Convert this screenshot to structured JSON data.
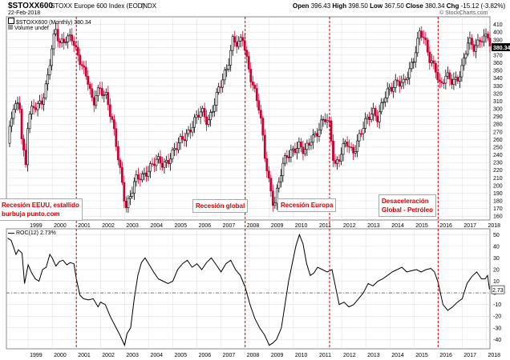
{
  "header": {
    "symbol": "$STOXX600",
    "name": "STOXX Europe 600 Index (EOD)",
    "exchange": "INDX",
    "date": "22-Feb-2018",
    "open_label": "Open",
    "open": "396.43",
    "high_label": "High",
    "high": "398.50",
    "low_label": "Low",
    "low": "367.50",
    "close_label": "Close",
    "close": "380.34",
    "chg_label": "Chg",
    "chg": "-15.12 (-3.82%)",
    "credit": "© StockCharts.com",
    "legend_price": "$STOXX600 (Monthly) 380.34",
    "legend_volume": "Volume undef",
    "legend_roc": "ROC(12) 2.73%"
  },
  "annotations": {
    "eeuu": [
      "Recesión EEUU, estallido",
      "burbuja punto.com"
    ],
    "global": "Recesión global",
    "europa": "Recesión Europa",
    "desac": [
      "Desaceleración",
      "Global - Petróleo"
    ]
  },
  "colors": {
    "up": "#000000",
    "down": "#cc0033",
    "marker": "#cc0000",
    "grid": "#dcdcdc"
  },
  "chart_data": [
    {
      "type": "candlestick",
      "title": "$STOXX600 (Monthly)",
      "last_value": 380.34,
      "last_label": "380.34",
      "ylim": [
        155,
        420
      ],
      "yticks": [
        160,
        170,
        180,
        190,
        200,
        210,
        220,
        230,
        240,
        250,
        260,
        270,
        280,
        290,
        300,
        310,
        320,
        330,
        340,
        350,
        360,
        370,
        380,
        390,
        400,
        410
      ],
      "xlim": [
        1998.1,
        2018.15
      ],
      "years": [
        1999,
        2000,
        2001,
        2002,
        2003,
        2004,
        2005,
        2006,
        2007,
        2008,
        2009,
        2010,
        2011,
        2012,
        2013,
        2014,
        2015,
        2016,
        2017,
        2018
      ],
      "recession_markers": [
        2001.0,
        2008.0,
        2011.5,
        2016.0
      ],
      "path": [
        [
          1998.15,
          255
        ],
        [
          1998.4,
          300
        ],
        [
          1998.65,
          305
        ],
        [
          1998.75,
          260
        ],
        [
          1998.9,
          228
        ],
        [
          1999.0,
          290
        ],
        [
          1999.3,
          300
        ],
        [
          1999.55,
          310
        ],
        [
          1999.8,
          340
        ],
        [
          2000.0,
          380
        ],
        [
          2000.15,
          400
        ],
        [
          2000.3,
          385
        ],
        [
          2000.55,
          395
        ],
        [
          2000.8,
          392
        ],
        [
          2001.0,
          370
        ],
        [
          2001.2,
          360
        ],
        [
          2001.45,
          345
        ],
        [
          2001.7,
          300
        ],
        [
          2001.8,
          315
        ],
        [
          2002.0,
          325
        ],
        [
          2002.25,
          320
        ],
        [
          2002.5,
          280
        ],
        [
          2002.75,
          230
        ],
        [
          2003.05,
          175
        ],
        [
          2003.2,
          185
        ],
        [
          2003.45,
          205
        ],
        [
          2003.7,
          210
        ],
        [
          2004.0,
          225
        ],
        [
          2004.3,
          230
        ],
        [
          2004.6,
          227
        ],
        [
          2004.9,
          240
        ],
        [
          2005.2,
          250
        ],
        [
          2005.5,
          265
        ],
        [
          2005.8,
          280
        ],
        [
          2006.2,
          295
        ],
        [
          2006.45,
          285
        ],
        [
          2006.75,
          310
        ],
        [
          2007.0,
          330
        ],
        [
          2007.25,
          355
        ],
        [
          2007.5,
          395
        ],
        [
          2007.7,
          380
        ],
        [
          2007.9,
          390
        ],
        [
          2008.1,
          360
        ],
        [
          2008.35,
          330
        ],
        [
          2008.6,
          295
        ],
        [
          2008.8,
          240
        ],
        [
          2009.0,
          205
        ],
        [
          2009.2,
          175
        ],
        [
          2009.45,
          210
        ],
        [
          2009.7,
          238
        ],
        [
          2010.0,
          250
        ],
        [
          2010.25,
          250
        ],
        [
          2010.45,
          240
        ],
        [
          2010.75,
          265
        ],
        [
          2011.0,
          270
        ],
        [
          2011.3,
          285
        ],
        [
          2011.5,
          280
        ],
        [
          2011.7,
          228
        ],
        [
          2011.9,
          235
        ],
        [
          2012.2,
          255
        ],
        [
          2012.45,
          245
        ],
        [
          2012.75,
          265
        ],
        [
          2013.0,
          280
        ],
        [
          2013.3,
          300
        ],
        [
          2013.5,
          290
        ],
        [
          2013.75,
          310
        ],
        [
          2014.0,
          325
        ],
        [
          2014.3,
          340
        ],
        [
          2014.55,
          330
        ],
        [
          2014.8,
          345
        ],
        [
          2015.0,
          370
        ],
        [
          2015.25,
          405
        ],
        [
          2015.45,
          385
        ],
        [
          2015.65,
          362
        ],
        [
          2015.9,
          355
        ],
        [
          2016.1,
          330
        ],
        [
          2016.3,
          340
        ],
        [
          2016.55,
          335
        ],
        [
          2016.8,
          342
        ],
        [
          2017.0,
          355
        ],
        [
          2017.25,
          385
        ],
        [
          2017.5,
          380
        ],
        [
          2017.75,
          395
        ],
        [
          2017.95,
          390
        ],
        [
          2018.05,
          396
        ],
        [
          2018.13,
          380
        ]
      ]
    },
    {
      "type": "line",
      "title": "ROC(12)",
      "last_value": 2.73,
      "last_label": "2.73",
      "zero_line": 0,
      "ylim": [
        -48,
        55
      ],
      "yticks": [
        -40,
        -30,
        -20,
        -10,
        0,
        10,
        20,
        30,
        40,
        50
      ],
      "xlim": [
        1998.1,
        2018.15
      ],
      "x": [
        1998.15,
        1998.3,
        1998.5,
        1998.6,
        1998.75,
        1998.85,
        1999.0,
        1999.15,
        1999.3,
        1999.45,
        1999.6,
        1999.75,
        1999.9,
        2000.0,
        2000.15,
        2000.3,
        2000.45,
        2000.6,
        2000.75,
        2000.9,
        2001.0,
        2001.15,
        2001.3,
        2001.5,
        2001.7,
        2001.9,
        2002.0,
        2002.2,
        2002.4,
        2002.6,
        2002.8,
        2003.0,
        2003.1,
        2003.25,
        2003.4,
        2003.55,
        2003.7,
        2003.85,
        2004.0,
        2004.2,
        2004.4,
        2004.6,
        2004.8,
        2005.0,
        2005.2,
        2005.4,
        2005.6,
        2005.8,
        2006.0,
        2006.2,
        2006.4,
        2006.6,
        2006.8,
        2007.0,
        2007.2,
        2007.4,
        2007.6,
        2007.8,
        2008.0,
        2008.2,
        2008.4,
        2008.6,
        2008.8,
        2009.0,
        2009.15,
        2009.3,
        2009.5,
        2009.65,
        2009.8,
        2010.0,
        2010.1,
        2010.25,
        2010.4,
        2010.55,
        2010.7,
        2010.85,
        2011.0,
        2011.2,
        2011.4,
        2011.6,
        2011.75,
        2011.9,
        2012.1,
        2012.3,
        2012.5,
        2012.7,
        2012.9,
        2013.1,
        2013.3,
        2013.5,
        2013.7,
        2013.9,
        2014.1,
        2014.3,
        2014.5,
        2014.7,
        2014.9,
        2015.1,
        2015.3,
        2015.5,
        2015.7,
        2015.85,
        2016.0,
        2016.2,
        2016.4,
        2016.6,
        2016.8,
        2017.0,
        2017.2,
        2017.4,
        2017.6,
        2017.8,
        2017.95,
        2018.05,
        2018.13
      ],
      "y": [
        47,
        45,
        33,
        37,
        34,
        8,
        24,
        17,
        12,
        10,
        20,
        22,
        33,
        30,
        23,
        27,
        28,
        24,
        26,
        25,
        12,
        -2,
        -5,
        -6,
        -5,
        -12,
        -8,
        -10,
        -20,
        -28,
        -36,
        -45,
        -35,
        -30,
        -5,
        15,
        26,
        30,
        25,
        18,
        12,
        10,
        8,
        10,
        20,
        25,
        28,
        22,
        25,
        20,
        26,
        30,
        24,
        18,
        25,
        28,
        20,
        15,
        5,
        -10,
        -22,
        -30,
        -36,
        -45,
        -43,
        -40,
        -30,
        -10,
        10,
        30,
        40,
        50,
        42,
        25,
        15,
        17,
        22,
        20,
        18,
        20,
        5,
        -10,
        -8,
        -12,
        -10,
        -5,
        0,
        8,
        6,
        10,
        12,
        15,
        18,
        20,
        22,
        18,
        19,
        20,
        18,
        20,
        21,
        18,
        9,
        -10,
        -15,
        -12,
        -8,
        -5,
        8,
        14,
        18,
        12,
        12,
        15,
        3
      ]
    }
  ]
}
